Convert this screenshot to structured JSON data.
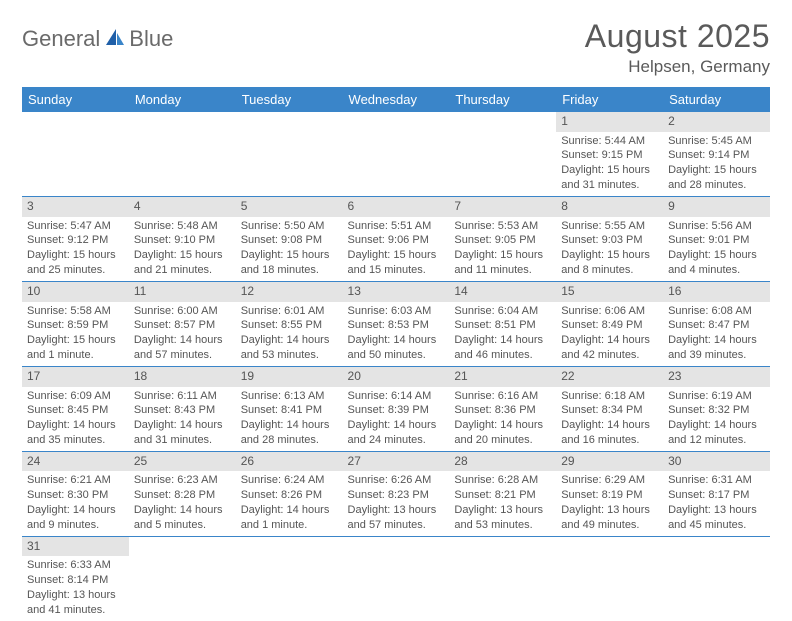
{
  "brand": {
    "word1": "General",
    "word2": "Blue"
  },
  "title": "August 2025",
  "location": "Helpsen, Germany",
  "colors": {
    "header_bg": "#3a85c9",
    "header_text": "#ffffff",
    "daynum_bg": "#e4e4e4",
    "row_border": "#3a85c9",
    "brand_gray": "#6a6a6a",
    "brand_blue": "#3a7fc4",
    "body_text": "#555555"
  },
  "weekdays": [
    "Sunday",
    "Monday",
    "Tuesday",
    "Wednesday",
    "Thursday",
    "Friday",
    "Saturday"
  ],
  "grid": [
    [
      {
        "n": "",
        "sr": "",
        "ss": "",
        "dl": ""
      },
      {
        "n": "",
        "sr": "",
        "ss": "",
        "dl": ""
      },
      {
        "n": "",
        "sr": "",
        "ss": "",
        "dl": ""
      },
      {
        "n": "",
        "sr": "",
        "ss": "",
        "dl": ""
      },
      {
        "n": "",
        "sr": "",
        "ss": "",
        "dl": ""
      },
      {
        "n": "1",
        "sr": "Sunrise: 5:44 AM",
        "ss": "Sunset: 9:15 PM",
        "dl": "Daylight: 15 hours and 31 minutes."
      },
      {
        "n": "2",
        "sr": "Sunrise: 5:45 AM",
        "ss": "Sunset: 9:14 PM",
        "dl": "Daylight: 15 hours and 28 minutes."
      }
    ],
    [
      {
        "n": "3",
        "sr": "Sunrise: 5:47 AM",
        "ss": "Sunset: 9:12 PM",
        "dl": "Daylight: 15 hours and 25 minutes."
      },
      {
        "n": "4",
        "sr": "Sunrise: 5:48 AM",
        "ss": "Sunset: 9:10 PM",
        "dl": "Daylight: 15 hours and 21 minutes."
      },
      {
        "n": "5",
        "sr": "Sunrise: 5:50 AM",
        "ss": "Sunset: 9:08 PM",
        "dl": "Daylight: 15 hours and 18 minutes."
      },
      {
        "n": "6",
        "sr": "Sunrise: 5:51 AM",
        "ss": "Sunset: 9:06 PM",
        "dl": "Daylight: 15 hours and 15 minutes."
      },
      {
        "n": "7",
        "sr": "Sunrise: 5:53 AM",
        "ss": "Sunset: 9:05 PM",
        "dl": "Daylight: 15 hours and 11 minutes."
      },
      {
        "n": "8",
        "sr": "Sunrise: 5:55 AM",
        "ss": "Sunset: 9:03 PM",
        "dl": "Daylight: 15 hours and 8 minutes."
      },
      {
        "n": "9",
        "sr": "Sunrise: 5:56 AM",
        "ss": "Sunset: 9:01 PM",
        "dl": "Daylight: 15 hours and 4 minutes."
      }
    ],
    [
      {
        "n": "10",
        "sr": "Sunrise: 5:58 AM",
        "ss": "Sunset: 8:59 PM",
        "dl": "Daylight: 15 hours and 1 minute."
      },
      {
        "n": "11",
        "sr": "Sunrise: 6:00 AM",
        "ss": "Sunset: 8:57 PM",
        "dl": "Daylight: 14 hours and 57 minutes."
      },
      {
        "n": "12",
        "sr": "Sunrise: 6:01 AM",
        "ss": "Sunset: 8:55 PM",
        "dl": "Daylight: 14 hours and 53 minutes."
      },
      {
        "n": "13",
        "sr": "Sunrise: 6:03 AM",
        "ss": "Sunset: 8:53 PM",
        "dl": "Daylight: 14 hours and 50 minutes."
      },
      {
        "n": "14",
        "sr": "Sunrise: 6:04 AM",
        "ss": "Sunset: 8:51 PM",
        "dl": "Daylight: 14 hours and 46 minutes."
      },
      {
        "n": "15",
        "sr": "Sunrise: 6:06 AM",
        "ss": "Sunset: 8:49 PM",
        "dl": "Daylight: 14 hours and 42 minutes."
      },
      {
        "n": "16",
        "sr": "Sunrise: 6:08 AM",
        "ss": "Sunset: 8:47 PM",
        "dl": "Daylight: 14 hours and 39 minutes."
      }
    ],
    [
      {
        "n": "17",
        "sr": "Sunrise: 6:09 AM",
        "ss": "Sunset: 8:45 PM",
        "dl": "Daylight: 14 hours and 35 minutes."
      },
      {
        "n": "18",
        "sr": "Sunrise: 6:11 AM",
        "ss": "Sunset: 8:43 PM",
        "dl": "Daylight: 14 hours and 31 minutes."
      },
      {
        "n": "19",
        "sr": "Sunrise: 6:13 AM",
        "ss": "Sunset: 8:41 PM",
        "dl": "Daylight: 14 hours and 28 minutes."
      },
      {
        "n": "20",
        "sr": "Sunrise: 6:14 AM",
        "ss": "Sunset: 8:39 PM",
        "dl": "Daylight: 14 hours and 24 minutes."
      },
      {
        "n": "21",
        "sr": "Sunrise: 6:16 AM",
        "ss": "Sunset: 8:36 PM",
        "dl": "Daylight: 14 hours and 20 minutes."
      },
      {
        "n": "22",
        "sr": "Sunrise: 6:18 AM",
        "ss": "Sunset: 8:34 PM",
        "dl": "Daylight: 14 hours and 16 minutes."
      },
      {
        "n": "23",
        "sr": "Sunrise: 6:19 AM",
        "ss": "Sunset: 8:32 PM",
        "dl": "Daylight: 14 hours and 12 minutes."
      }
    ],
    [
      {
        "n": "24",
        "sr": "Sunrise: 6:21 AM",
        "ss": "Sunset: 8:30 PM",
        "dl": "Daylight: 14 hours and 9 minutes."
      },
      {
        "n": "25",
        "sr": "Sunrise: 6:23 AM",
        "ss": "Sunset: 8:28 PM",
        "dl": "Daylight: 14 hours and 5 minutes."
      },
      {
        "n": "26",
        "sr": "Sunrise: 6:24 AM",
        "ss": "Sunset: 8:26 PM",
        "dl": "Daylight: 14 hours and 1 minute."
      },
      {
        "n": "27",
        "sr": "Sunrise: 6:26 AM",
        "ss": "Sunset: 8:23 PM",
        "dl": "Daylight: 13 hours and 57 minutes."
      },
      {
        "n": "28",
        "sr": "Sunrise: 6:28 AM",
        "ss": "Sunset: 8:21 PM",
        "dl": "Daylight: 13 hours and 53 minutes."
      },
      {
        "n": "29",
        "sr": "Sunrise: 6:29 AM",
        "ss": "Sunset: 8:19 PM",
        "dl": "Daylight: 13 hours and 49 minutes."
      },
      {
        "n": "30",
        "sr": "Sunrise: 6:31 AM",
        "ss": "Sunset: 8:17 PM",
        "dl": "Daylight: 13 hours and 45 minutes."
      }
    ],
    [
      {
        "n": "31",
        "sr": "Sunrise: 6:33 AM",
        "ss": "Sunset: 8:14 PM",
        "dl": "Daylight: 13 hours and 41 minutes."
      },
      {
        "n": "",
        "sr": "",
        "ss": "",
        "dl": ""
      },
      {
        "n": "",
        "sr": "",
        "ss": "",
        "dl": ""
      },
      {
        "n": "",
        "sr": "",
        "ss": "",
        "dl": ""
      },
      {
        "n": "",
        "sr": "",
        "ss": "",
        "dl": ""
      },
      {
        "n": "",
        "sr": "",
        "ss": "",
        "dl": ""
      },
      {
        "n": "",
        "sr": "",
        "ss": "",
        "dl": ""
      }
    ]
  ]
}
